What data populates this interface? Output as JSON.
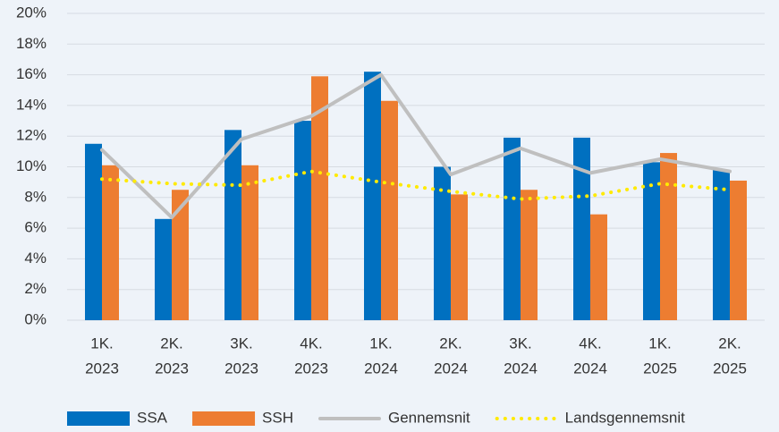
{
  "chart_data": {
    "type": "bar_line",
    "categories": [
      [
        "1K.",
        "2023"
      ],
      [
        "2K.",
        "2023"
      ],
      [
        "3K.",
        "2023"
      ],
      [
        "4K.",
        "2023"
      ],
      [
        "1K.",
        "2024"
      ],
      [
        "2K.",
        "2024"
      ],
      [
        "3K.",
        "2024"
      ],
      [
        "4K.",
        "2024"
      ],
      [
        "1K.",
        "2025"
      ],
      [
        "2K.",
        "2025"
      ]
    ],
    "series": [
      {
        "name": "SSA",
        "type": "bar",
        "color": "#0070c0",
        "values": [
          11.5,
          6.6,
          12.4,
          13.0,
          16.2,
          10.0,
          11.9,
          11.9,
          10.3,
          9.8
        ]
      },
      {
        "name": "SSH",
        "type": "bar",
        "color": "#ed7d31",
        "values": [
          10.1,
          8.5,
          10.1,
          15.9,
          14.3,
          8.2,
          8.5,
          6.9,
          10.9,
          9.1
        ]
      },
      {
        "name": "Gennemsnit",
        "type": "line",
        "color": "#bfbfbf",
        "values": [
          11.1,
          6.7,
          11.8,
          13.3,
          16.0,
          9.5,
          11.2,
          9.6,
          10.5,
          9.7
        ]
      },
      {
        "name": "Landsgennemsnit",
        "type": "dotted",
        "color": "#ffea00",
        "values": [
          9.2,
          8.9,
          8.8,
          9.7,
          9.0,
          8.4,
          7.9,
          8.1,
          8.9,
          8.5
        ]
      }
    ],
    "ylim": [
      0,
      20
    ],
    "yticks": [
      {
        "value": 0,
        "label": "0%"
      },
      {
        "value": 2,
        "label": "2%"
      },
      {
        "value": 4,
        "label": "4%"
      },
      {
        "value": 6,
        "label": "6%"
      },
      {
        "value": 8,
        "label": "8%"
      },
      {
        "value": 10,
        "label": "10%"
      },
      {
        "value": 12,
        "label": "12%"
      },
      {
        "value": 14,
        "label": "14%"
      },
      {
        "value": 16,
        "label": "16%"
      },
      {
        "value": 18,
        "label": "18%"
      },
      {
        "value": 20,
        "label": "20%"
      }
    ],
    "grid": true,
    "legend": "bottom"
  }
}
